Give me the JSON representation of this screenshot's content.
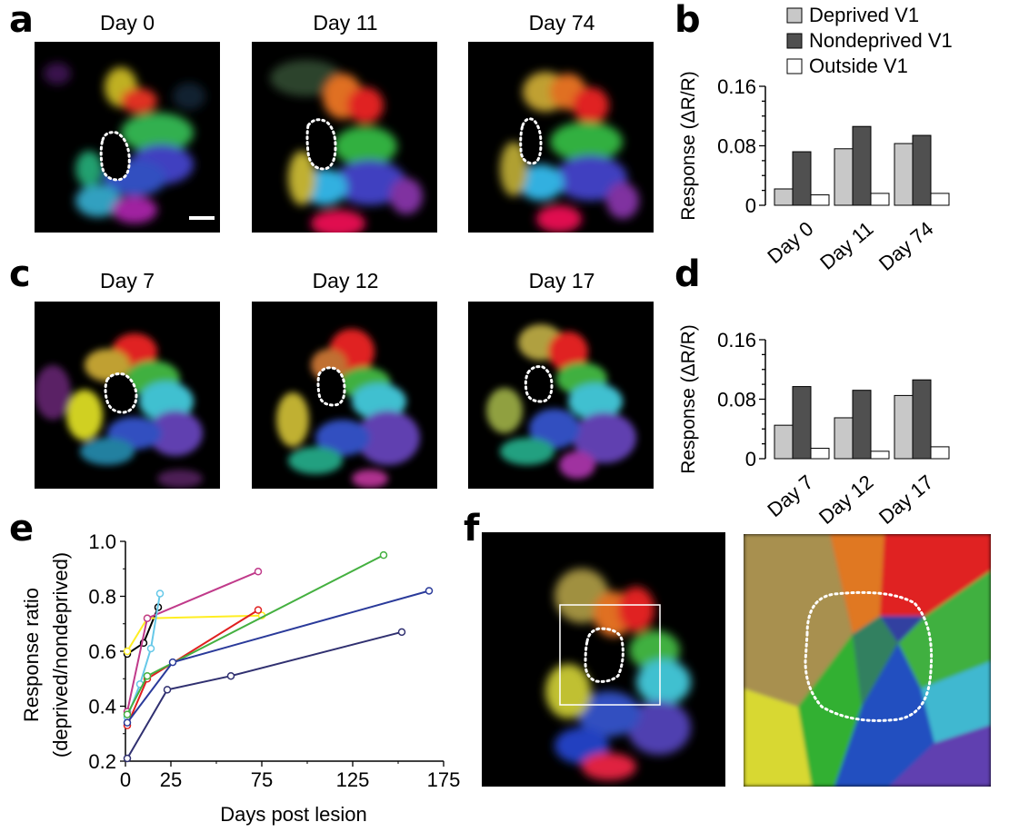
{
  "panels": {
    "a": "a",
    "b": "b",
    "c": "c",
    "d": "d",
    "e": "e",
    "f": "f"
  },
  "row_a": {
    "days": [
      "Day 0",
      "Day 11",
      "Day 74"
    ]
  },
  "row_c": {
    "days": [
      "Day 7",
      "Day 12",
      "Day 17"
    ]
  },
  "colors": {
    "deprived": "#c8c8c8",
    "nondeprived": "#505050",
    "outside": "#ffffff"
  },
  "chart_data": [
    {
      "id": "b",
      "type": "bar",
      "categories": [
        "Day 0",
        "Day 11",
        "Day 74"
      ],
      "series": [
        {
          "name": "Deprived V1",
          "values": [
            0.022,
            0.076,
            0.083
          ]
        },
        {
          "name": "Nondeprived V1",
          "values": [
            0.072,
            0.106,
            0.094
          ]
        },
        {
          "name": "Outside V1",
          "values": [
            0.014,
            0.016,
            0.016
          ]
        }
      ],
      "ylabel": "Response (ΔR/R)",
      "ylim": [
        0,
        0.16
      ],
      "yticks": [
        "0",
        "0.08",
        "0.16"
      ],
      "legend": "top"
    },
    {
      "id": "d",
      "type": "bar",
      "categories": [
        "Day 7",
        "Day 12",
        "Day 17"
      ],
      "series": [
        {
          "name": "Deprived V1",
          "values": [
            0.045,
            0.055,
            0.085
          ]
        },
        {
          "name": "Nondeprived V1",
          "values": [
            0.097,
            0.092,
            0.106
          ]
        },
        {
          "name": "Outside V1",
          "values": [
            0.014,
            0.01,
            0.016
          ]
        }
      ],
      "ylabel": "Response (ΔR/R)",
      "ylim": [
        0,
        0.16
      ],
      "yticks": [
        "0",
        "0.08",
        "0.16"
      ]
    },
    {
      "id": "e",
      "type": "line",
      "xlabel": "Days post lesion",
      "ylabel_line1": "Response ratio",
      "ylabel_line2": "(deprived/nondeprived)",
      "xlim": [
        0,
        175
      ],
      "ylim": [
        0.2,
        1.0
      ],
      "xticks": [
        "0",
        "25",
        "75",
        "125",
        "175"
      ],
      "yticks": [
        "0.2",
        "0.4",
        "0.6",
        "0.8",
        "1.0"
      ],
      "series": [
        {
          "color": "#000000",
          "points": [
            [
              1,
              0.59
            ],
            [
              10,
              0.63
            ],
            [
              18,
              0.76
            ]
          ]
        },
        {
          "color": "#ffee22",
          "points": [
            [
              1,
              0.6
            ],
            [
              12,
              0.72
            ],
            [
              75,
              0.73
            ]
          ]
        },
        {
          "color": "#c03a8a",
          "points": [
            [
              1,
              0.38
            ],
            [
              12,
              0.72
            ],
            [
              73,
              0.89
            ]
          ]
        },
        {
          "color": "#66c8e8",
          "points": [
            [
              1,
              0.36
            ],
            [
              8,
              0.48
            ],
            [
              14,
              0.61
            ],
            [
              19,
              0.81
            ]
          ]
        },
        {
          "color": "#e02020",
          "points": [
            [
              1,
              0.33
            ],
            [
              12,
              0.5
            ],
            [
              73,
              0.75
            ]
          ]
        },
        {
          "color": "#44b040",
          "points": [
            [
              1,
              0.37
            ],
            [
              12,
              0.51
            ],
            [
              142,
              0.95
            ]
          ]
        },
        {
          "color": "#2a3a9a",
          "points": [
            [
              1,
              0.34
            ],
            [
              26,
              0.56
            ],
            [
              167,
              0.82
            ]
          ]
        },
        {
          "color": "#303070",
          "points": [
            [
              1,
              0.21
            ],
            [
              23,
              0.46
            ],
            [
              58,
              0.51
            ],
            [
              152,
              0.67
            ]
          ]
        }
      ]
    }
  ]
}
